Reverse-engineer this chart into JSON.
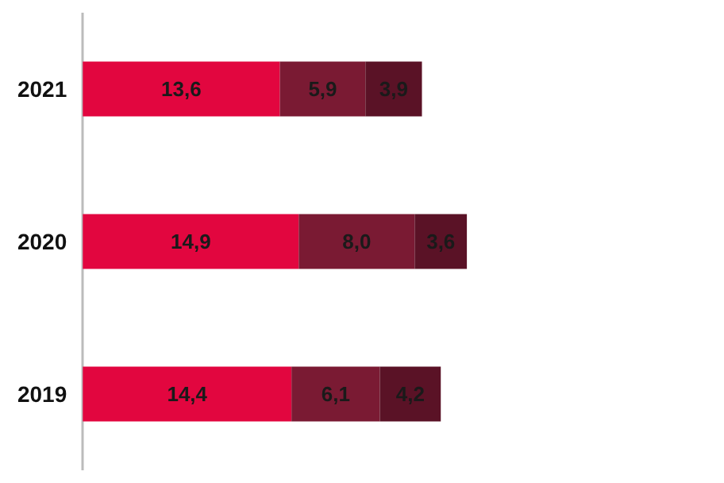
{
  "chart_data": {
    "type": "bar",
    "orientation": "horizontal",
    "stacked": true,
    "categories": [
      "2021",
      "2020",
      "2019"
    ],
    "series": [
      {
        "color": "#e2063f",
        "values": [
          13.6,
          14.9,
          14.4
        ],
        "value_labels": [
          "13,6",
          "14,9",
          "14,4"
        ]
      },
      {
        "color": "#7a1a33",
        "values": [
          5.9,
          8.0,
          6.1
        ],
        "value_labels": [
          "5,9",
          "8,0",
          "6,1"
        ]
      },
      {
        "color": "#5a1226",
        "values": [
          3.9,
          3.6,
          4.2
        ],
        "value_labels": [
          "3,9",
          "3,6",
          "4,2"
        ]
      }
    ],
    "tick_labels": "y"
  }
}
